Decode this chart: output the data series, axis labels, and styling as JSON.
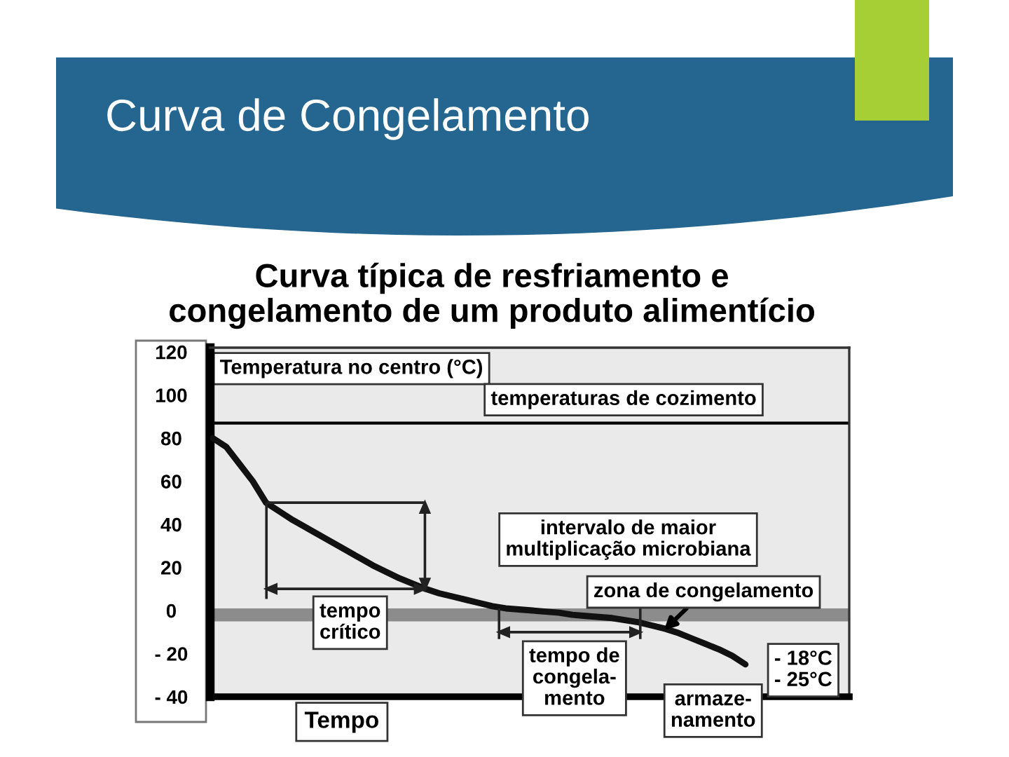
{
  "chart_data": {
    "type": "line",
    "title": "Curva de Congelamento",
    "subtitle": "Curva típica de resfriamento e\ncongelamento de um produto alimentício",
    "xlabel": "Tempo",
    "ylabel": "Temperatura no centro (°C)",
    "categories": [
      null,
      null,
      null,
      null,
      null,
      null,
      null,
      null,
      null,
      null,
      null,
      null,
      null,
      null,
      null,
      null,
      null,
      null,
      null,
      null,
      null,
      null,
      null,
      null,
      null,
      null,
      null,
      null,
      null,
      null,
      null,
      null,
      null,
      null,
      null,
      null,
      null,
      null,
      null,
      null,
      null
    ],
    "series": [
      {
        "color": "#111111",
        "values": [
          80,
          76,
          68,
          60,
          50,
          46,
          42,
          38.5,
          35,
          31.5,
          28,
          24.5,
          21,
          18,
          15,
          12.5,
          10,
          8,
          6.5,
          5,
          3.5,
          2,
          1,
          0.5,
          0,
          -0.5,
          -1,
          -2,
          -2.5,
          -3,
          -3.5,
          -4.5,
          -5.5,
          -7,
          -8.5,
          -10.5,
          -13,
          -15.5,
          -18,
          -21,
          -25
        ]
      }
    ],
    "ylim": [
      -40,
      122
    ],
    "yticks": [
      120,
      100,
      80,
      60,
      40,
      20,
      0,
      {
        "value": -20,
        "label": "- 20"
      },
      {
        "value": -40,
        "label": "- 40"
      }
    ],
    "tick_labels": "y",
    "line_style": "solid",
    "ref_lines": [
      {
        "axis": "y",
        "value": 87,
        "label": "temperaturas de cozimento",
        "color": "#000000"
      }
    ],
    "bands": [
      {
        "axis": "y",
        "from": -5,
        "to": 1,
        "label": "zona de congelamento",
        "color": "#8c8c8c"
      }
    ],
    "annotations": [
      "intervalo de maior\nmultiplicação microbiana",
      "tempo\ncrítico",
      "tempo de\ncongela-\nmento",
      "armaze-\nnamento",
      "- 18°C\n- 25°C"
    ]
  }
}
